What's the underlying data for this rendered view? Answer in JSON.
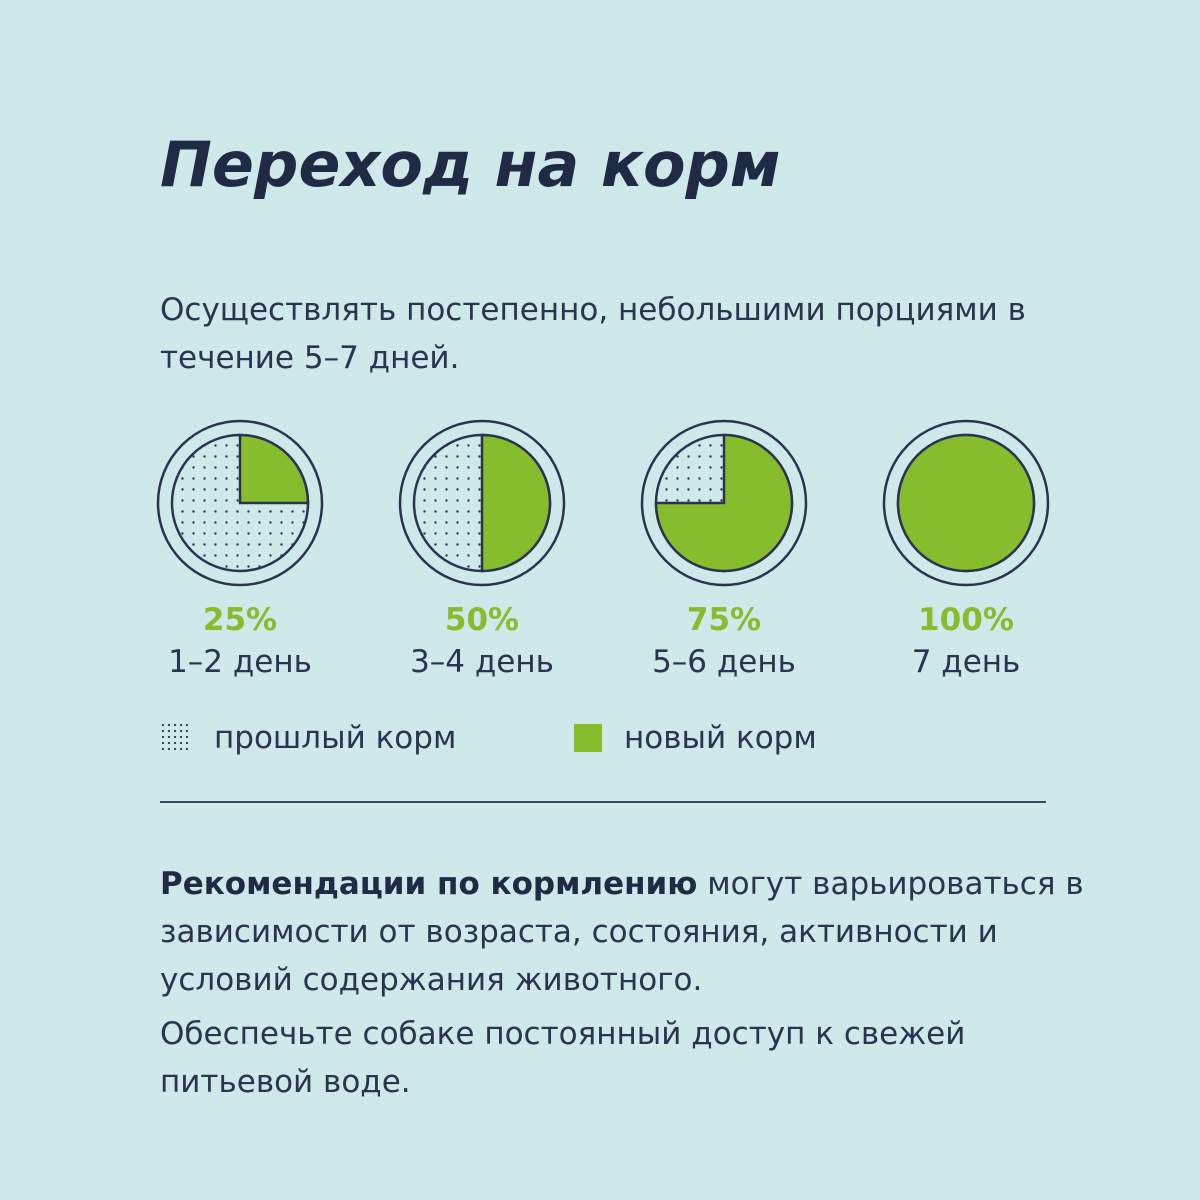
{
  "title": "Переход на корм",
  "intro": "Осуществлять постепенно, небольшими порциями в течение 5–7 дней.",
  "colors": {
    "new_food": "#86bd2c",
    "circle_outline": "#2a3450",
    "background": "#cfe8e9"
  },
  "steps": [
    {
      "new_fraction": 0.25,
      "percent": "25%",
      "days": "1–2 день"
    },
    {
      "new_fraction": 0.5,
      "percent": "50%",
      "days": "3–4 день"
    },
    {
      "new_fraction": 0.75,
      "percent": "75%",
      "days": "5–6 день"
    },
    {
      "new_fraction": 1.0,
      "percent": "100%",
      "days": "7 день"
    }
  ],
  "legend": {
    "old": {
      "label": "прошлый корм",
      "icon": "dotted-square-icon"
    },
    "new": {
      "label": "новый корм",
      "icon": "green-square-icon"
    }
  },
  "recommendation": {
    "bold": "Рекомендации по кормлению",
    "text": " могут варьироваться в зависимости от возраста, состояния, активности и условий содержания животного."
  },
  "water_note": "Обеспечьте собаке постоянный доступ к свежей питьевой воде."
}
